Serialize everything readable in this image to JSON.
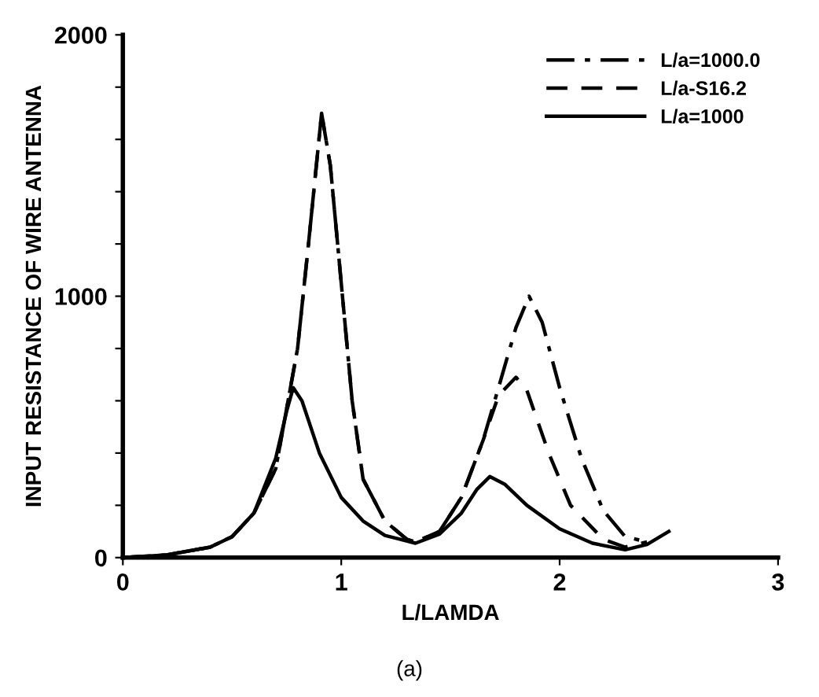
{
  "chart_data": {
    "type": "line",
    "xlabel": "L/LAMDA",
    "ylabel": "INPUT RESISTANCE OF WIRE ANTENNA",
    "xlim": [
      0,
      3
    ],
    "xticks": [
      0,
      1,
      2,
      3
    ],
    "ylim": [
      0,
      2000
    ],
    "yticks": [
      0,
      {
        "value": 200,
        "label": null
      },
      {
        "value": 400,
        "label": null
      },
      {
        "value": 600,
        "label": null
      },
      {
        "value": 800,
        "label": null
      },
      1000,
      {
        "value": 1200,
        "label": null
      },
      {
        "value": 1400,
        "label": null
      },
      {
        "value": 1600,
        "label": null
      },
      {
        "value": 1800,
        "label": null
      },
      2000
    ],
    "grid": false,
    "legend": "top right",
    "marker": "none",
    "annotations": [
      "(a)"
    ],
    "series": [
      {
        "name": "L/a=1000.0",
        "color": "#000000",
        "line_style": "dashdot",
        "x": [
          0,
          0.2,
          0.4,
          0.5,
          0.6,
          0.7,
          0.8,
          0.85,
          0.91,
          0.95,
          1.0,
          1.05,
          1.1,
          1.2,
          1.3,
          1.34,
          1.45,
          1.55,
          1.65,
          1.72,
          1.8,
          1.86,
          1.92,
          2.0,
          2.1,
          2.2,
          2.3,
          2.4
        ],
        "values": [
          0,
          10,
          40,
          80,
          170,
          340,
          800,
          1200,
          1700,
          1500,
          1050,
          600,
          300,
          140,
          70,
          60,
          100,
          230,
          450,
          650,
          880,
          1000,
          900,
          650,
          380,
          180,
          80,
          60
        ]
      },
      {
        "name": "L/a-S16.2",
        "color": "#000000",
        "line_style": "dashed",
        "x": [
          0,
          0.2,
          0.4,
          0.5,
          0.6,
          0.7,
          0.8,
          0.85,
          0.91,
          0.95,
          1.0,
          1.05,
          1.1,
          1.2,
          1.3,
          1.34,
          1.45,
          1.55,
          1.65,
          1.72,
          1.8,
          1.85,
          1.95,
          2.05,
          2.2,
          2.3,
          2.4
        ],
        "values": [
          0,
          10,
          40,
          80,
          170,
          340,
          800,
          1200,
          1700,
          1500,
          1050,
          600,
          300,
          140,
          70,
          60,
          100,
          230,
          450,
          620,
          690,
          640,
          400,
          200,
          70,
          40,
          60
        ]
      },
      {
        "name": "L/a=1000",
        "color": "#000000",
        "line_style": "solid",
        "x": [
          0,
          0.2,
          0.4,
          0.5,
          0.6,
          0.7,
          0.75,
          0.78,
          0.82,
          0.9,
          1.0,
          1.1,
          1.2,
          1.34,
          1.45,
          1.55,
          1.62,
          1.68,
          1.75,
          1.85,
          2.0,
          2.15,
          2.3,
          2.4,
          2.5
        ],
        "values": [
          0,
          10,
          40,
          80,
          170,
          380,
          560,
          650,
          600,
          400,
          230,
          140,
          85,
          55,
          90,
          170,
          260,
          310,
          280,
          200,
          110,
          55,
          30,
          50,
          100
        ]
      }
    ]
  }
}
